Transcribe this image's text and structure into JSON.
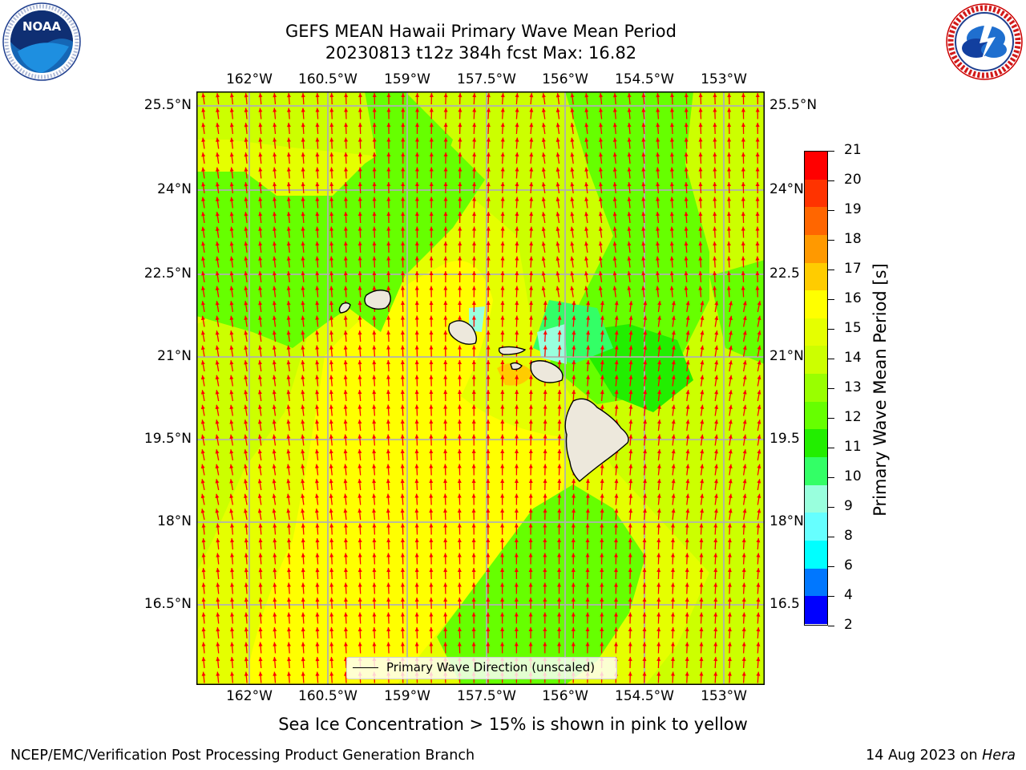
{
  "header": {
    "title": "GEFS MEAN Hawaii Primary Wave Mean Period",
    "subtitle": "20230813 t12z 384h fcst   Max: 16.82"
  },
  "logos": {
    "noaa": {
      "text": "NOAA",
      "ring_text": "NATIONAL OCEANIC AND ATMOSPHERIC ADMINISTRATION · U.S. DEPARTMENT OF COMMERCE"
    },
    "nws": {
      "ring_text": "NATIONAL WEATHER SERVICE"
    }
  },
  "map": {
    "lon_ticks": [
      "162°W",
      "160.5°W",
      "159°W",
      "157.5°W",
      "156°W",
      "154.5°W",
      "153°W"
    ],
    "lat_ticks_left": [
      "25.5°N",
      "24°N",
      "22.5°N",
      "21°N",
      "19.5°N",
      "18°N",
      "16.5°N"
    ],
    "lat_ticks_right": [
      "25.5°N",
      "24°N",
      "22.5",
      "21°N",
      "19.5",
      "18°N",
      "16.5"
    ],
    "arrow_color": "#ff0000",
    "coastline_color": "#000000",
    "land_color": "#ede8dc",
    "grid_color": "#b0b0b0",
    "legend_label": "Primary Wave Direction (unscaled)"
  },
  "colorbar": {
    "label": "Primary Wave Mean Period [s]",
    "ticks": [
      "21",
      "20",
      "19",
      "18",
      "17",
      "16",
      "15",
      "14",
      "13",
      "12",
      "11",
      "10",
      "9",
      "8",
      "6",
      "4",
      "2"
    ],
    "colors": [
      "#ff0000",
      "#ff3300",
      "#ff6600",
      "#ff9900",
      "#ffcc00",
      "#ffff00",
      "#e5ff00",
      "#ccff00",
      "#99ff00",
      "#66ff00",
      "#22ee00",
      "#33ff66",
      "#99ffdd",
      "#66ffff",
      "#00ffff",
      "#0077ff",
      "#0000ff"
    ]
  },
  "note": "Sea Ice Concentration > 15% is shown in pink to yellow",
  "footer": {
    "left": "NCEP/EMC/Verification Post Processing Product Generation Branch",
    "right_date": "14 Aug 2023 on ",
    "right_machine": "Hera"
  }
}
